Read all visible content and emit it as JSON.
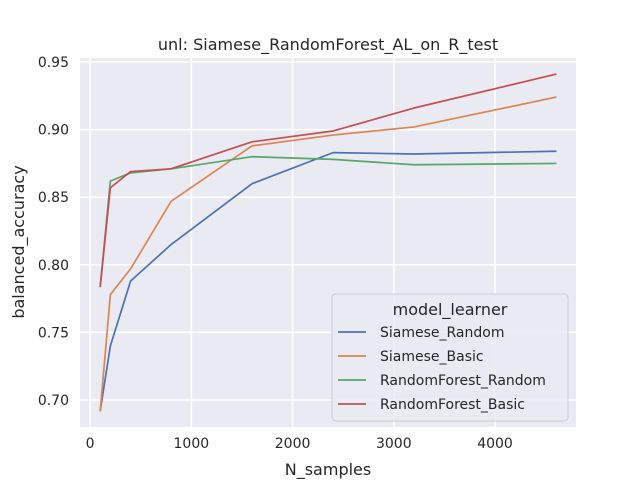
{
  "chart_data": {
    "type": "line",
    "title": "unl: Siamese_RandomForest_AL_on_R_test",
    "xlabel": "N_samples",
    "ylabel": "balanced_accuracy",
    "xlim": [
      -100,
      4800
    ],
    "ylim": [
      0.68,
      0.953
    ],
    "xticks": [
      0,
      1000,
      2000,
      3000,
      4000
    ],
    "xtick_labels": [
      "0",
      "1000",
      "2000",
      "3000",
      "4000"
    ],
    "yticks": [
      0.7,
      0.75,
      0.8,
      0.85,
      0.9,
      0.95
    ],
    "ytick_labels": [
      "0.70",
      "0.75",
      "0.80",
      "0.85",
      "0.90",
      "0.95"
    ],
    "grid": true,
    "legend_placement": "lower-right",
    "legend_title": "model_learner",
    "x": [
      100,
      200,
      400,
      800,
      1600,
      2400,
      3200,
      4600
    ],
    "series": [
      {
        "name": "Siamese_Random",
        "color": "#4c72b0",
        "values": [
          0.692,
          0.74,
          0.788,
          0.815,
          0.86,
          0.883,
          0.882,
          0.884
        ]
      },
      {
        "name": "Siamese_Basic",
        "color": "#dd8452",
        "values": [
          0.692,
          0.778,
          0.797,
          0.847,
          0.888,
          0.896,
          0.902,
          0.924
        ]
      },
      {
        "name": "RandomForest_Random",
        "color": "#55a868",
        "values": [
          0.784,
          0.862,
          0.868,
          0.871,
          0.88,
          0.878,
          0.874,
          0.875
        ]
      },
      {
        "name": "RandomForest_Basic",
        "color": "#c44e52",
        "values": [
          0.784,
          0.857,
          0.869,
          0.871,
          0.891,
          0.899,
          0.916,
          0.941
        ]
      }
    ]
  }
}
